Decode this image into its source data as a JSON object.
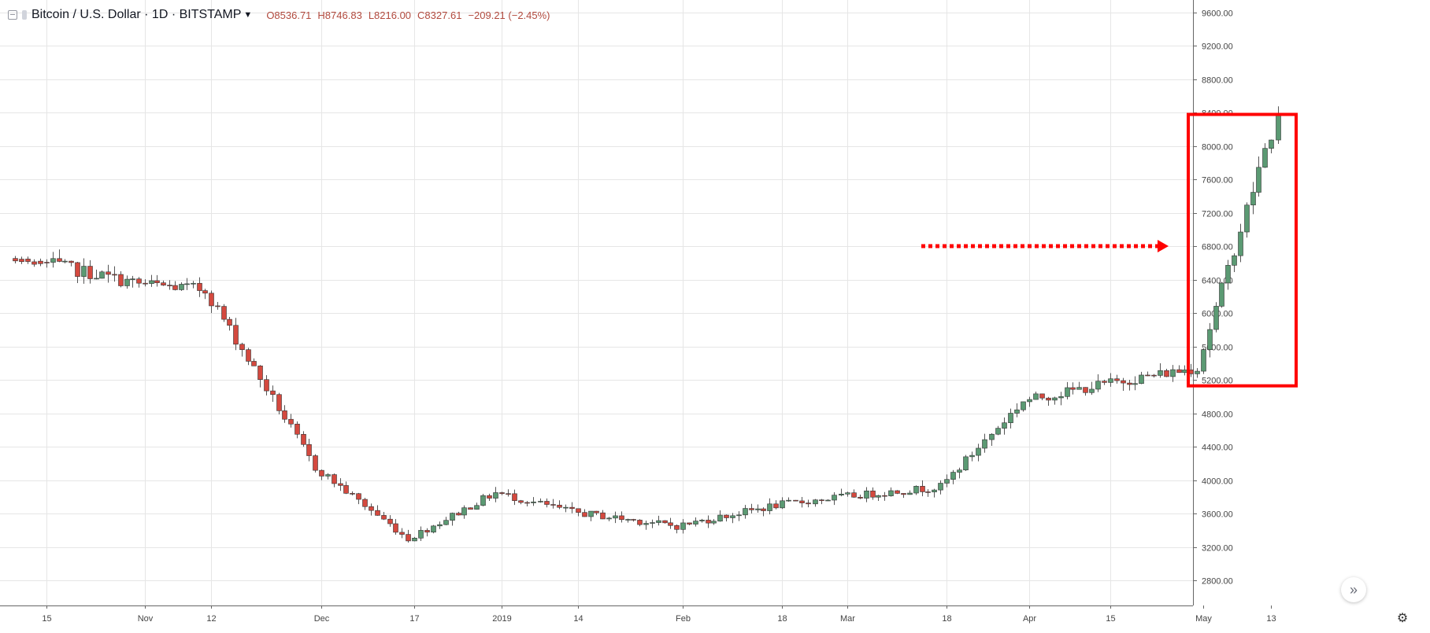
{
  "header": {
    "symbol": "Bitcoin / U.S. Dollar · 1D · BITSTAMP",
    "open": "O8536.71",
    "high": "H8746.83",
    "low": "L8216.00",
    "close": "C8327.61",
    "change": "−209.21 (−2.45%)"
  },
  "colors": {
    "up": "#5b9a73",
    "down": "#d4493f",
    "grid": "#e6e6e6",
    "annotation": "#ff0000"
  },
  "icons": {
    "scroll_forward": "double-chevron-right-icon",
    "settings": "gear-icon"
  },
  "chart_data": {
    "type": "candlestick",
    "y_range": [
      2500,
      9750
    ],
    "y_ticks": [
      "9600.00",
      "9200.00",
      "8800.00",
      "8400.00",
      "8000.00",
      "7600.00",
      "7200.00",
      "6800.00",
      "6400.00",
      "6000.00",
      "5600.00",
      "5200.00",
      "4800.00",
      "4400.00",
      "4000.00",
      "3600.00",
      "3200.00",
      "2800.00"
    ],
    "x_labels": [
      "15",
      "Nov",
      "12",
      "Dec",
      "17",
      "2019",
      "14",
      "Feb",
      "18",
      "Mar",
      "18",
      "Apr",
      "15",
      "May",
      "13"
    ],
    "anchors": [
      {
        "value": 6610,
        "label_index": 0
      },
      {
        "value": 6350,
        "label_index": 1
      },
      {
        "value": 6280,
        "label_index": 2
      },
      {
        "value": 4150,
        "label_index": 3
      },
      {
        "value": 3300,
        "label_index": 4
      },
      {
        "value": 3850,
        "label_index": 5
      },
      {
        "value": 3620,
        "label_index": 6
      },
      {
        "value": 3450,
        "label_index": 7
      },
      {
        "value": 3700,
        "label_index": 8
      },
      {
        "value": 3800,
        "label_index": 9
      },
      {
        "value": 3920,
        "label_index": 10
      },
      {
        "value": 4950,
        "label_index": 11
      },
      {
        "value": 5150,
        "label_index": 12
      },
      {
        "value": 5350,
        "label_index": 13
      },
      {
        "value": 7950,
        "label_index": 14
      },
      {
        "value": 8330
      }
    ],
    "annotations": {
      "highlight_box": {
        "price_top": 8380,
        "price_bottom": 5130
      },
      "arrow": {
        "price": 6800
      }
    }
  }
}
